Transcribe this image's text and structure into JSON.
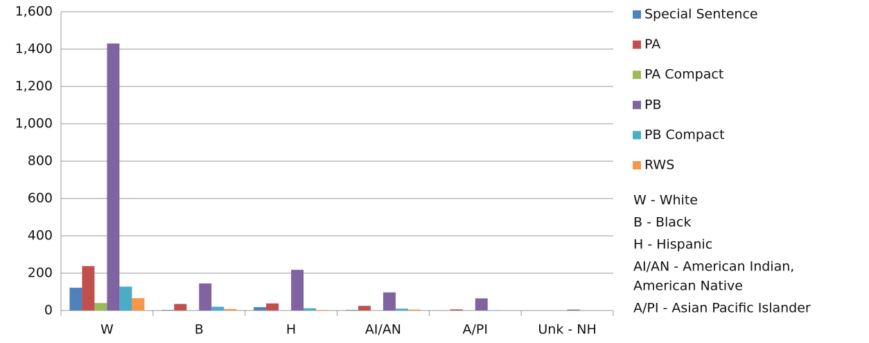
{
  "chart_data": {
    "type": "bar",
    "categories": [
      "W",
      "B",
      "H",
      "AI/AN",
      "A/PI",
      "Unk - NH"
    ],
    "series": [
      {
        "name": "Special Sentence",
        "color": "#4f81bd",
        "values": [
          122,
          3,
          18,
          3,
          1,
          0
        ]
      },
      {
        "name": "PA",
        "color": "#c0504d",
        "values": [
          238,
          35,
          38,
          25,
          6,
          0
        ]
      },
      {
        "name": "PA Compact",
        "color": "#9bbb59",
        "values": [
          40,
          0,
          1,
          0,
          0,
          0
        ]
      },
      {
        "name": "PB",
        "color": "#8064a2",
        "values": [
          1430,
          145,
          218,
          97,
          65,
          5
        ]
      },
      {
        "name": "PB Compact",
        "color": "#4bacc6",
        "values": [
          128,
          20,
          12,
          10,
          2,
          0
        ]
      },
      {
        "name": "RWS",
        "color": "#f79646",
        "values": [
          66,
          8,
          3,
          5,
          0,
          0
        ]
      }
    ],
    "ylim": [
      0,
      1600
    ],
    "yticks": [
      0,
      200,
      400,
      600,
      800,
      {
        "value": 1000,
        "label": "1,000"
      },
      {
        "value": 1200,
        "label": "1,200"
      },
      {
        "value": 1400,
        "label": "1,400"
      },
      {
        "value": 1600,
        "label": "1,600"
      }
    ],
    "grid": true,
    "legend": "right",
    "notes": [
      "W - White",
      "B - Black",
      "H - Hispanic",
      "AI/AN - American Indian,",
      "American Native",
      "A/PI - Asian Pacific Islander"
    ]
  }
}
